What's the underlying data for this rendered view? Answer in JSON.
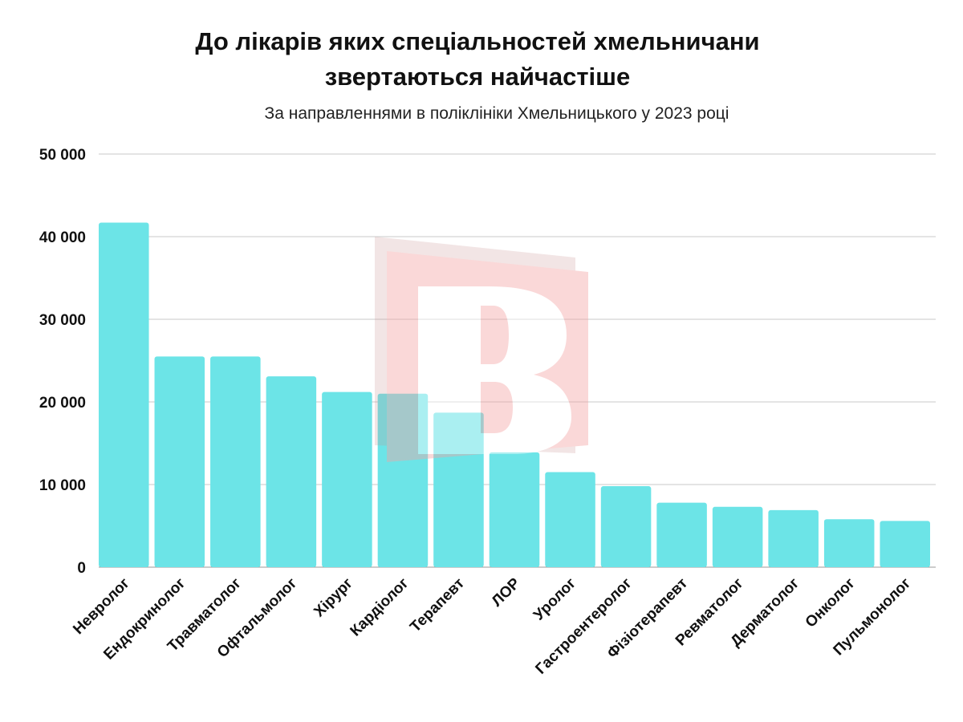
{
  "header": {
    "title_line1": "До лікарів яких спеціальностей хмельничани",
    "title_line2": "звертаються найчастіше",
    "subtitle": "За направленнями в поліклініки Хмельницького у 2023 році"
  },
  "colors": {
    "bar": "#6ce4e7",
    "grid": "#c8c8c8",
    "watermark_red": "#f5a3a3",
    "watermark_dark": "#c98e8e"
  },
  "chart_data": {
    "type": "bar",
    "title": "До лікарів яких спеціальностей хмельничани звертаються найчастіше",
    "subtitle": "За направленнями в поліклініки Хмельницького у 2023 році",
    "categories": [
      "Невролог",
      "Ендокринолог",
      "Травматолог",
      "Офтальмолог",
      "Хірург",
      "Кардіолог",
      "Терапевт",
      "ЛОР",
      "Уролог",
      "Гастроентеролог",
      "Фізіотерапевт",
      "Ревматолог",
      "Дерматолог",
      "Онколог",
      "Пульмонолог"
    ],
    "values": [
      41700,
      25500,
      25500,
      23100,
      21200,
      21000,
      18700,
      13900,
      11500,
      9800,
      7800,
      7300,
      6900,
      5800,
      5600
    ],
    "ylim": [
      0,
      50000
    ],
    "yticks": [
      0,
      10000,
      20000,
      30000,
      40000,
      50000
    ],
    "ytick_labels": [
      "0",
      "10 000",
      "20 000",
      "30 000",
      "40 000",
      "50 000"
    ],
    "xlabel": "",
    "ylabel": "",
    "grid": true,
    "legend": "none"
  }
}
